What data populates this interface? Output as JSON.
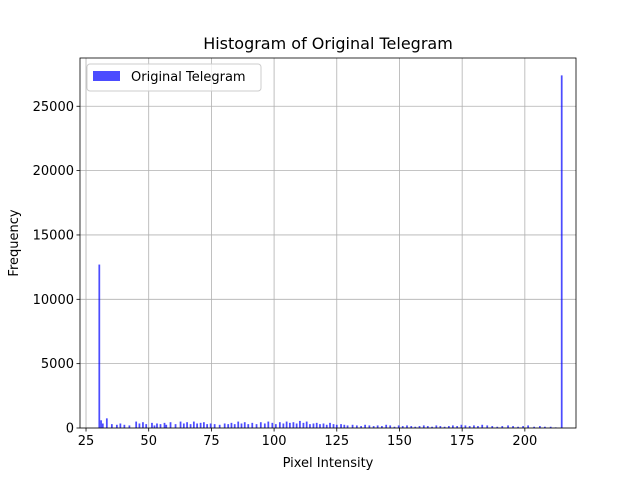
{
  "chart_data": {
    "type": "bar",
    "title": "Histogram of Original Telegram",
    "xlabel": "Pixel Intensity",
    "ylabel": "Frequency",
    "xlim": [
      22.6,
      220.4
    ],
    "ylim": [
      0,
      28750
    ],
    "grid": true,
    "legend_position": "top-left",
    "bar_color": "#0000ff",
    "x_ticks": [
      25,
      50,
      75,
      100,
      125,
      150,
      175,
      200
    ],
    "y_ticks": [
      0,
      5000,
      10000,
      15000,
      20000,
      25000
    ],
    "series": [
      {
        "name": "Original Telegram",
        "bin_width": 0.7,
        "x": [
          30.3,
          31.0,
          31.7,
          33.3,
          35.3,
          37.3,
          38.7,
          40.3,
          42.3,
          45.0,
          46.3,
          47.7,
          49.0,
          51.3,
          52.3,
          53.3,
          54.7,
          56.3,
          57.0,
          58.7,
          60.7,
          62.7,
          64.0,
          65.3,
          66.7,
          68.0,
          69.3,
          70.7,
          72.0,
          73.3,
          74.7,
          76.3,
          78.3,
          80.3,
          81.7,
          83.0,
          84.3,
          85.7,
          87.0,
          88.3,
          89.7,
          91.3,
          93.0,
          94.7,
          96.3,
          97.7,
          99.3,
          100.7,
          102.3,
          103.7,
          105.0,
          106.3,
          107.7,
          109.0,
          110.3,
          111.7,
          113.0,
          114.3,
          115.7,
          117.0,
          118.3,
          119.7,
          121.0,
          122.3,
          123.7,
          125.0,
          126.7,
          128.0,
          129.3,
          131.3,
          133.0,
          134.7,
          136.3,
          138.0,
          139.7,
          141.3,
          143.0,
          144.7,
          146.3,
          148.0,
          149.7,
          151.3,
          153.0,
          154.7,
          156.3,
          158.0,
          159.7,
          161.3,
          163.0,
          164.7,
          166.3,
          168.0,
          169.7,
          171.3,
          173.0,
          174.7,
          176.3,
          178.0,
          179.7,
          181.3,
          183.0,
          185.0,
          187.0,
          189.0,
          191.0,
          193.3,
          195.3,
          197.3,
          199.3,
          201.3,
          203.7,
          206.0,
          208.0,
          210.3,
          212.3,
          214.7
        ],
        "values": [
          12700,
          600,
          350,
          750,
          300,
          250,
          350,
          250,
          200,
          500,
          350,
          450,
          300,
          400,
          200,
          350,
          300,
          400,
          250,
          450,
          300,
          500,
          350,
          450,
          300,
          500,
          350,
          400,
          450,
          300,
          350,
          300,
          250,
          350,
          300,
          400,
          300,
          500,
          350,
          450,
          300,
          400,
          300,
          450,
          350,
          500,
          400,
          300,
          450,
          350,
          500,
          400,
          450,
          350,
          550,
          400,
          500,
          300,
          350,
          400,
          300,
          350,
          250,
          400,
          300,
          250,
          300,
          250,
          200,
          250,
          200,
          150,
          250,
          200,
          150,
          200,
          150,
          250,
          200,
          100,
          200,
          150,
          200,
          150,
          100,
          150,
          200,
          150,
          100,
          200,
          150,
          100,
          150,
          200,
          150,
          250,
          200,
          150,
          200,
          150,
          250,
          200,
          150,
          100,
          150,
          200,
          150,
          100,
          150,
          200,
          100,
          150,
          100,
          100,
          50,
          27400
        ]
      }
    ]
  }
}
